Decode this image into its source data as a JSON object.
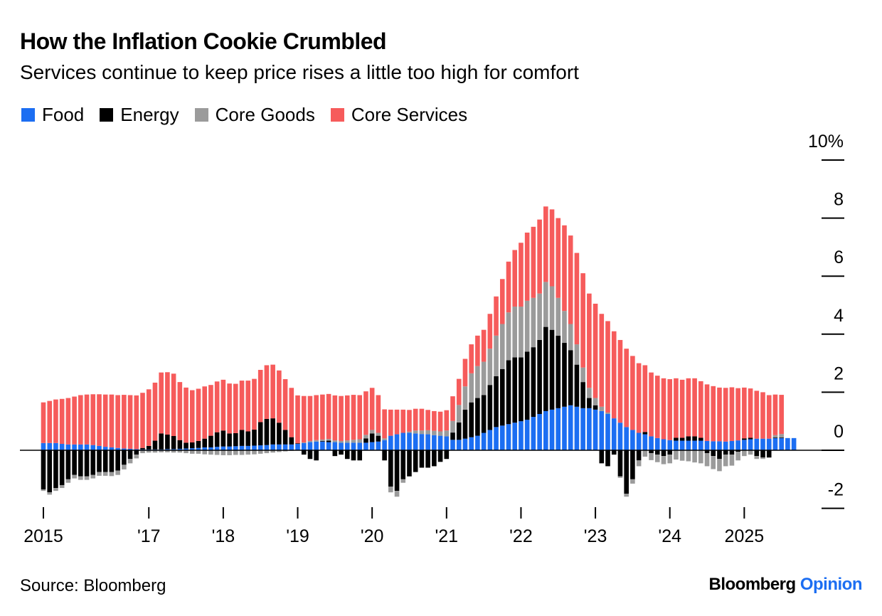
{
  "header": {
    "title": "How the Inflation Cookie Crumbled",
    "subtitle": "Services continue to keep price rises a little too high for comfort"
  },
  "footer": {
    "source": "Source: Bloomberg",
    "brand_primary": "Bloomberg",
    "brand_secondary": "Opinion"
  },
  "colors": {
    "Food": "#1c6ef2",
    "Energy": "#000000",
    "Core Goods": "#9b9b9b",
    "Core Services": "#f65b5b",
    "brand_accent": "#1c6ef2"
  },
  "chart_data": {
    "type": "bar",
    "stacked": true,
    "title": "How the Inflation Cookie Crumbled",
    "subtitle": "Services continue to keep price rises a little too high for comfort",
    "xlabel": "",
    "ylabel": "",
    "ylim": [
      -2,
      10
    ],
    "y_ticks": [
      -2,
      0,
      2,
      4,
      6,
      8,
      10
    ],
    "y_tick_labels": [
      "-2",
      "0",
      "2",
      "4",
      "6",
      "8",
      "10%"
    ],
    "y_axis_side": "right",
    "x_ticks": [
      {
        "label": "2015",
        "month_index": 0
      },
      {
        "label": "'17",
        "month_index": 17
      },
      {
        "label": "'18",
        "month_index": 29
      },
      {
        "label": "'19",
        "month_index": 41
      },
      {
        "label": "'20",
        "month_index": 53
      },
      {
        "label": "'21",
        "month_index": 65
      },
      {
        "label": "'22",
        "month_index": 77
      },
      {
        "label": "'23",
        "month_index": 89
      },
      {
        "label": "'24",
        "month_index": 101
      },
      {
        "label": "2025",
        "month_index": 113
      }
    ],
    "start": "2015-01",
    "frequency": "monthly",
    "legend_position": "top-left",
    "series": [
      {
        "name": "Food",
        "values": [
          0.25,
          0.25,
          0.25,
          0.22,
          0.2,
          0.2,
          0.2,
          0.2,
          0.18,
          0.15,
          0.12,
          0.1,
          0.08,
          0.06,
          0.05,
          0.04,
          0.03,
          0.03,
          0.03,
          0.03,
          0.04,
          0.04,
          0.05,
          0.06,
          0.07,
          0.08,
          0.1,
          0.1,
          0.12,
          0.13,
          0.13,
          0.14,
          0.15,
          0.15,
          0.16,
          0.17,
          0.18,
          0.2,
          0.2,
          0.2,
          0.2,
          0.22,
          0.25,
          0.28,
          0.3,
          0.3,
          0.28,
          0.28,
          0.26,
          0.26,
          0.26,
          0.26,
          0.26,
          0.28,
          0.3,
          0.35,
          0.5,
          0.55,
          0.6,
          0.6,
          0.58,
          0.56,
          0.55,
          0.52,
          0.5,
          0.48,
          0.36,
          0.36,
          0.4,
          0.45,
          0.5,
          0.6,
          0.7,
          0.8,
          0.85,
          0.9,
          0.95,
          1.0,
          1.05,
          1.15,
          1.25,
          1.35,
          1.4,
          1.45,
          1.5,
          1.55,
          1.5,
          1.45,
          1.45,
          1.4,
          1.35,
          1.25,
          1.1,
          0.95,
          0.8,
          0.7,
          0.6,
          0.55,
          0.48,
          0.42,
          0.38,
          0.35,
          0.33,
          0.33,
          0.33,
          0.33,
          0.33,
          0.32,
          0.31,
          0.31,
          0.3,
          0.32,
          0.34,
          0.36,
          0.38,
          0.4,
          0.4,
          0.4,
          0.42,
          0.42,
          0.42,
          0.42
        ]
      },
      {
        "name": "Energy",
        "values": [
          -1.35,
          -1.45,
          -1.3,
          -1.2,
          -1.0,
          -0.85,
          -0.9,
          -0.9,
          -0.85,
          -0.75,
          -0.75,
          -0.75,
          -0.7,
          -0.5,
          -0.3,
          -0.15,
          0.05,
          0.12,
          0.3,
          0.55,
          0.5,
          0.45,
          0.3,
          0.2,
          0.2,
          0.24,
          0.3,
          0.4,
          0.5,
          0.55,
          0.45,
          0.45,
          0.55,
          0.5,
          0.55,
          0.8,
          0.9,
          0.9,
          0.75,
          0.5,
          0.25,
          0.02,
          -0.15,
          -0.3,
          -0.35,
          0.02,
          0.05,
          -0.2,
          -0.15,
          -0.3,
          -0.35,
          -0.35,
          0.15,
          0.3,
          0.2,
          -0.35,
          -1.25,
          -1.4,
          -1.0,
          -0.9,
          -0.75,
          -0.6,
          -0.6,
          -0.55,
          -0.4,
          -0.3,
          0.25,
          0.6,
          1.0,
          1.2,
          1.3,
          1.3,
          1.55,
          1.75,
          1.95,
          2.2,
          2.25,
          2.2,
          2.35,
          2.4,
          2.55,
          2.9,
          2.75,
          2.5,
          2.2,
          1.9,
          1.45,
          0.9,
          0.35,
          0.15,
          -0.45,
          -0.55,
          -0.15,
          -0.9,
          -1.5,
          -1.0,
          -0.35,
          0.08,
          -0.1,
          -0.15,
          -0.2,
          -0.15,
          0.1,
          0.1,
          0.15,
          0.15,
          0.1,
          -0.1,
          -0.2,
          -0.3,
          -0.15,
          -0.15,
          -0.05,
          0.05,
          0.05,
          -0.2,
          -0.25,
          -0.25,
          0.02,
          0.02
        ]
      },
      {
        "name": "Core Goods",
        "values": [
          -0.05,
          -0.08,
          -0.1,
          -0.1,
          -0.12,
          -0.12,
          -0.12,
          -0.12,
          -0.12,
          -0.13,
          -0.13,
          -0.14,
          -0.15,
          -0.16,
          -0.15,
          -0.13,
          -0.1,
          -0.08,
          -0.08,
          -0.07,
          -0.07,
          -0.08,
          -0.08,
          -0.1,
          -0.12,
          -0.12,
          -0.14,
          -0.15,
          -0.16,
          -0.17,
          -0.17,
          -0.16,
          -0.16,
          -0.15,
          -0.14,
          -0.12,
          -0.1,
          -0.08,
          -0.06,
          -0.04,
          -0.02,
          0.0,
          0.02,
          0.04,
          0.05,
          0.05,
          0.06,
          0.06,
          0.06,
          0.08,
          0.1,
          0.12,
          0.12,
          0.12,
          0.1,
          0.06,
          -0.2,
          -0.2,
          -0.12,
          0.04,
          0.1,
          0.12,
          0.14,
          0.15,
          0.15,
          0.2,
          0.4,
          0.6,
          0.8,
          1.0,
          1.1,
          1.15,
          1.25,
          1.4,
          1.55,
          1.65,
          1.75,
          1.75,
          1.75,
          1.7,
          1.6,
          1.55,
          1.5,
          1.3,
          1.1,
          0.9,
          0.7,
          0.5,
          0.35,
          0.25,
          0.15,
          0.05,
          0.0,
          -0.05,
          -0.1,
          -0.15,
          -0.2,
          -0.22,
          -0.24,
          -0.26,
          -0.28,
          -0.3,
          -0.32,
          -0.36,
          -0.38,
          -0.42,
          -0.45,
          -0.45,
          -0.45,
          -0.42,
          -0.4,
          -0.38,
          -0.3,
          -0.2,
          -0.15,
          -0.1,
          -0.05,
          0.0,
          0.08,
          0.12
        ]
      },
      {
        "name": "Core Services",
        "values": [
          1.4,
          1.45,
          1.5,
          1.55,
          1.6,
          1.65,
          1.7,
          1.72,
          1.75,
          1.78,
          1.8,
          1.82,
          1.82,
          1.85,
          1.85,
          1.85,
          1.9,
          1.95,
          2.0,
          2.1,
          2.15,
          2.15,
          2.0,
          1.9,
          1.8,
          1.8,
          1.8,
          1.75,
          1.75,
          1.75,
          1.72,
          1.7,
          1.7,
          1.75,
          1.75,
          1.8,
          1.85,
          1.85,
          1.8,
          1.75,
          1.7,
          1.65,
          1.6,
          1.55,
          1.55,
          1.55,
          1.55,
          1.55,
          1.55,
          1.55,
          1.55,
          1.52,
          1.5,
          1.45,
          1.3,
          1.0,
          0.9,
          0.85,
          0.8,
          0.75,
          0.75,
          0.75,
          0.7,
          0.68,
          0.68,
          0.7,
          0.85,
          0.9,
          0.95,
          1.0,
          1.05,
          1.1,
          1.2,
          1.35,
          1.55,
          1.75,
          1.95,
          2.2,
          2.35,
          2.45,
          2.55,
          2.6,
          2.65,
          2.75,
          2.95,
          3.05,
          3.15,
          3.25,
          3.25,
          3.25,
          3.2,
          3.15,
          3.0,
          2.85,
          2.7,
          2.55,
          2.4,
          2.3,
          2.2,
          2.15,
          2.1,
          2.1,
          2.05,
          2.0,
          2.0,
          2.0,
          1.95,
          1.95,
          1.9,
          1.85,
          1.85,
          1.85,
          1.8,
          1.75,
          1.7,
          1.65,
          1.6,
          1.5,
          1.4,
          1.35
        ]
      }
    ]
  }
}
